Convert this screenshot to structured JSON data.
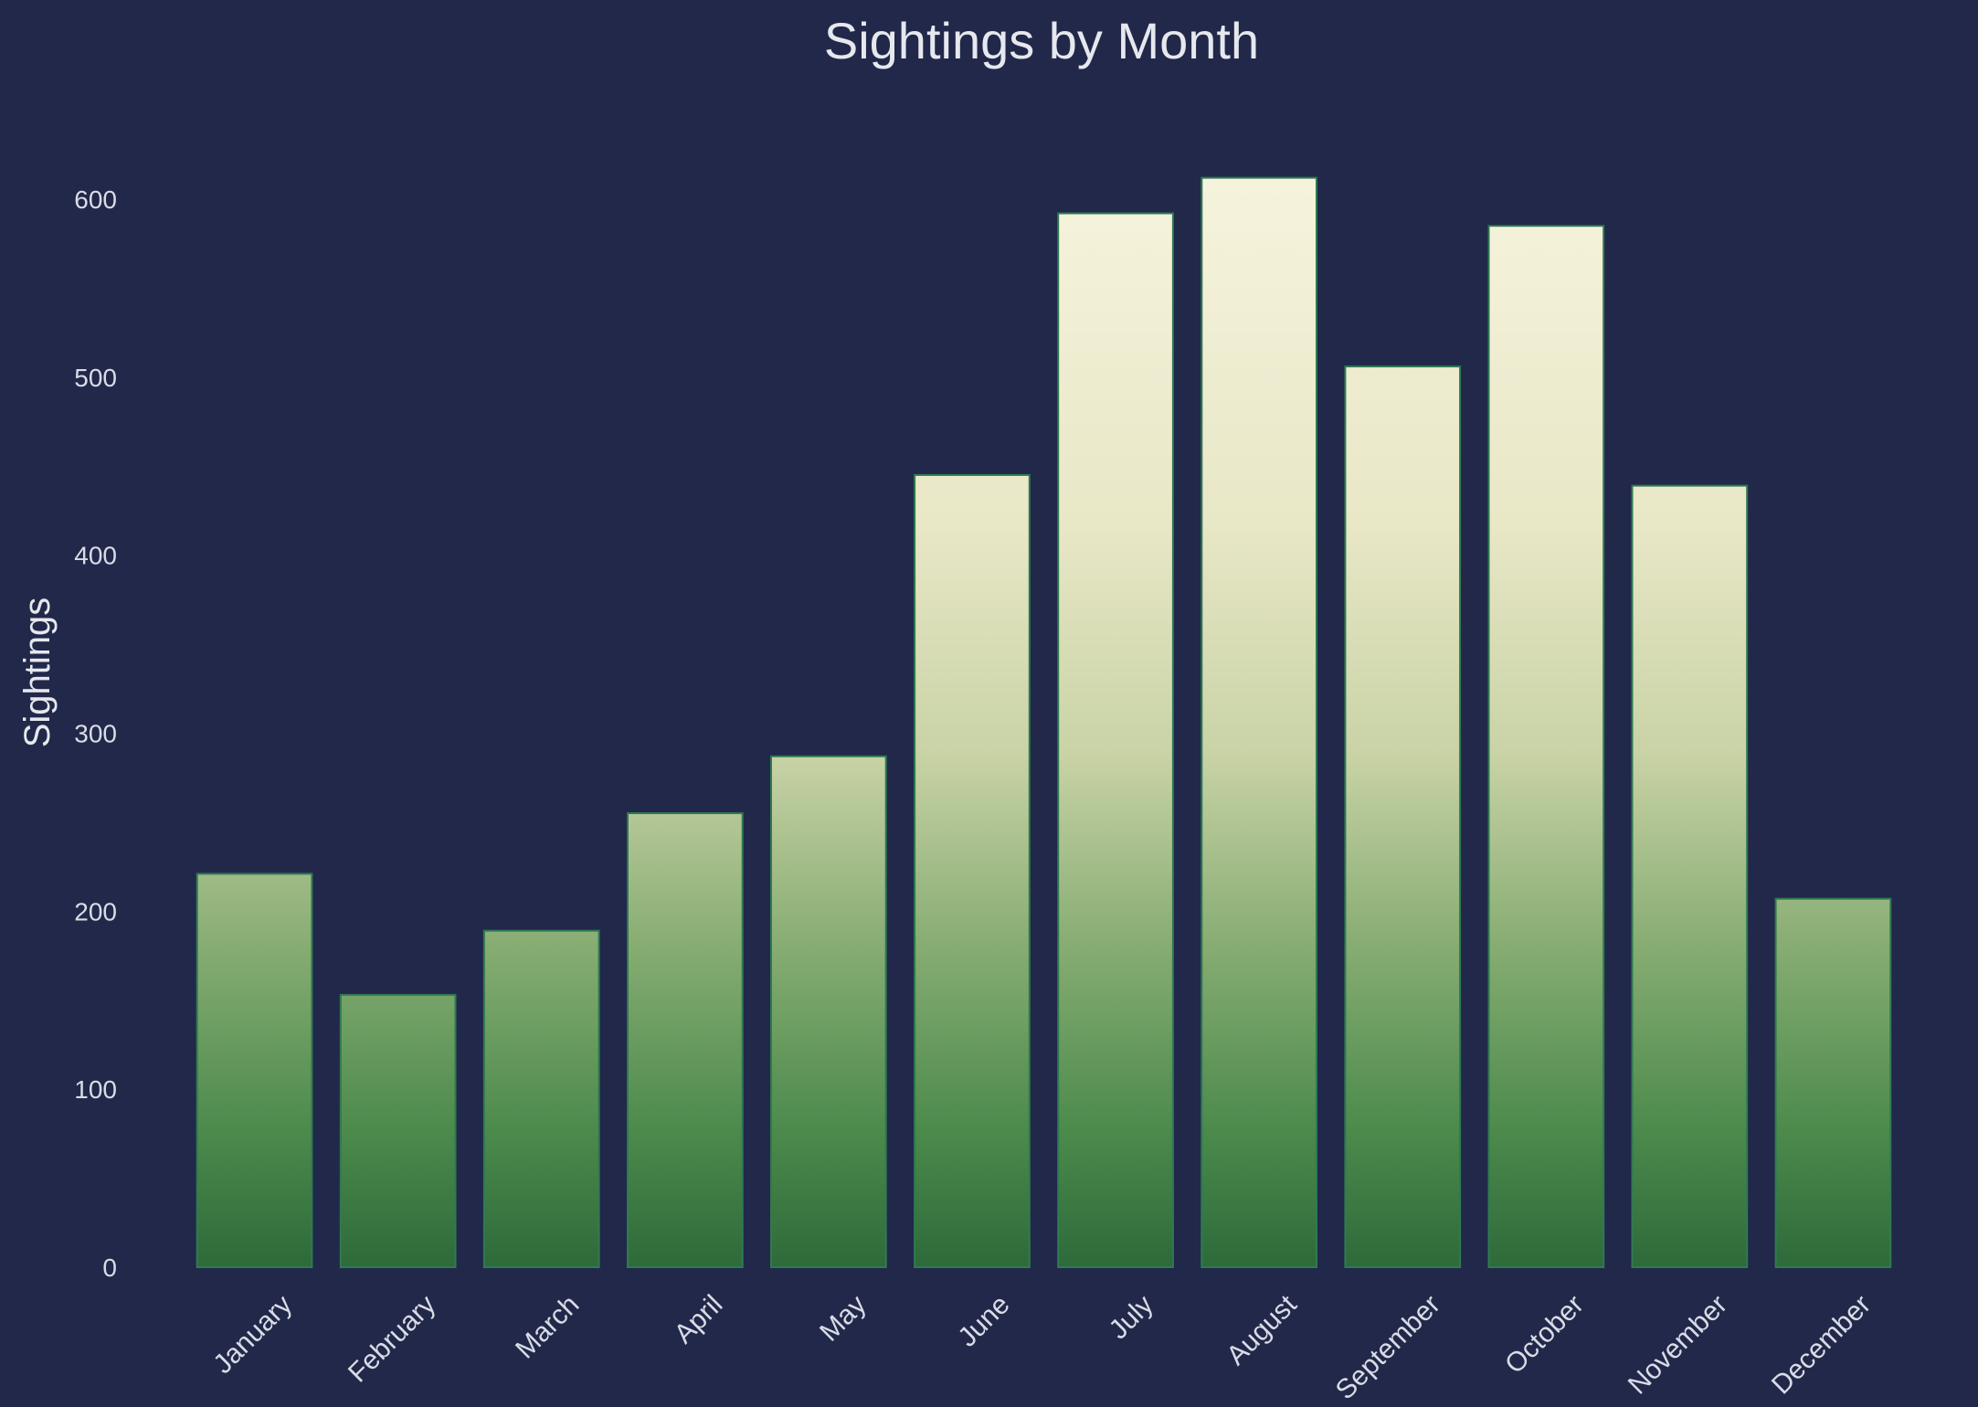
{
  "chart_data": {
    "type": "bar",
    "title": "Sightings by Month",
    "xlabel": "",
    "ylabel": "Sightings",
    "categories": [
      "January",
      "February",
      "March",
      "April",
      "May",
      "June",
      "July",
      "August",
      "September",
      "October",
      "November",
      "December"
    ],
    "values": [
      221,
      153,
      189,
      255,
      287,
      445,
      592,
      612,
      506,
      585,
      439,
      207
    ],
    "yticks": [
      0,
      100,
      200,
      300,
      400,
      500,
      600
    ],
    "ylim": [
      0,
      640
    ],
    "grid": false,
    "legend": "none",
    "colors": {
      "background": "#21284a",
      "text": "#e6e8ee",
      "bar_top": "#f8f5e0",
      "bar_mid": "#d9dcb8",
      "bar_low": "#7fa86c",
      "bar_bottom": "#2f6e3a",
      "bar_edge": "#2f7a52"
    }
  }
}
